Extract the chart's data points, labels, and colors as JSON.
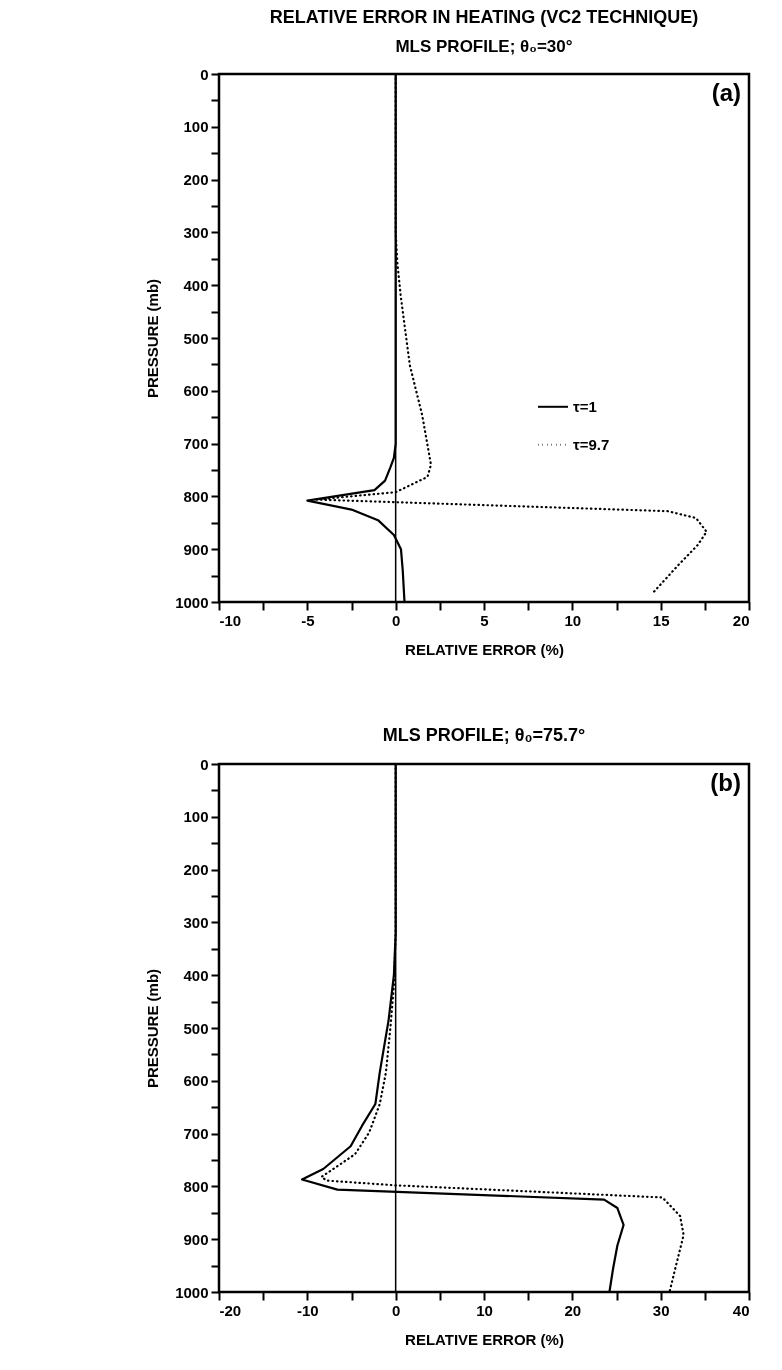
{
  "chart_data": [
    {
      "type": "line",
      "title": "RELATIVE ERROR IN HEATING (VC2 TECHNIQUE)",
      "subtitle": "MLS PROFILE; θ₀=30°",
      "xlabel": "RELATIVE ERROR  (%)",
      "ylabel": "PRESSURE  (mb)",
      "xlim": [
        -10,
        20
      ],
      "ylim": [
        1000,
        0
      ],
      "xticks": [
        -10,
        {
          "value": -7.5,
          "label": null
        },
        -5,
        {
          "value": -2.5,
          "label": null
        },
        0,
        {
          "value": 2.5,
          "label": null
        },
        5,
        {
          "value": 7.5,
          "label": null
        },
        10,
        {
          "value": 12.5,
          "label": null
        },
        15,
        {
          "value": 17.5,
          "label": null
        },
        20
      ],
      "yticks": [
        0,
        {
          "value": 50,
          "label": null
        },
        100,
        {
          "value": 150,
          "label": null
        },
        200,
        {
          "value": 250,
          "label": null
        },
        300,
        {
          "value": 350,
          "label": null
        },
        400,
        {
          "value": 450,
          "label": null
        },
        500,
        {
          "value": 550,
          "label": null
        },
        600,
        {
          "value": 650,
          "label": null
        },
        700,
        {
          "value": 750,
          "label": null
        },
        800,
        {
          "value": 850,
          "label": null
        },
        900,
        {
          "value": 950,
          "label": null
        },
        1000
      ],
      "grid": false,
      "legend": "right",
      "ref_lines": [
        {
          "axis": "x",
          "value": 0
        }
      ],
      "annotations": [
        "(a)"
      ],
      "series": [
        {
          "name": "τ=1",
          "color": "#000000",
          "line_style": "solid",
          "x": [
            0,
            0,
            -0.1,
            -0.3,
            -0.6,
            -1.2,
            -5,
            -2.5,
            -1.0,
            -0.1,
            0.3,
            0.4,
            0.5
          ],
          "values": [
            0,
            700,
            727,
            745,
            770,
            788,
            808,
            825,
            845,
            873,
            900,
            940,
            1000
          ]
        },
        {
          "name": "τ=9.7",
          "color": "#000000",
          "line_style": "dotted",
          "x": [
            0,
            0,
            0.1,
            0.3,
            0.8,
            1.5,
            2.0,
            1.8,
            0,
            -4.5,
            0,
            15.4,
            17,
            17.6,
            17.1,
            16,
            14.5
          ],
          "values": [
            0,
            300,
            360,
            424,
            551,
            646,
            740,
            763,
            792,
            806,
            811,
            828,
            841,
            867,
            892,
            930,
            985
          ]
        }
      ]
    },
    {
      "type": "line",
      "title": "MLS PROFILE; θ₀=75.7°",
      "xlabel": "RELATIVE ERROR  (%)",
      "ylabel": "PRESSURE  (mb)",
      "xlim": [
        -20,
        40
      ],
      "ylim": [
        1000,
        0
      ],
      "xticks": [
        -20,
        {
          "value": -15,
          "label": null
        },
        -10,
        {
          "value": -5,
          "label": null
        },
        0,
        {
          "value": 5,
          "label": null
        },
        10,
        {
          "value": 15,
          "label": null
        },
        20,
        {
          "value": 25,
          "label": null
        },
        30,
        {
          "value": 35,
          "label": null
        },
        40
      ],
      "yticks": [
        0,
        {
          "value": 50,
          "label": null
        },
        100,
        {
          "value": 150,
          "label": null
        },
        200,
        {
          "value": 250,
          "label": null
        },
        300,
        {
          "value": 350,
          "label": null
        },
        400,
        {
          "value": 450,
          "label": null
        },
        500,
        {
          "value": 550,
          "label": null
        },
        600,
        {
          "value": 650,
          "label": null
        },
        700,
        {
          "value": 750,
          "label": null
        },
        800,
        {
          "value": 850,
          "label": null
        },
        900,
        {
          "value": 950,
          "label": null
        },
        1000
      ],
      "grid": false,
      "ref_lines": [
        {
          "axis": "x",
          "value": 0
        }
      ],
      "annotations": [
        "(b)"
      ],
      "series": [
        {
          "color": "#000000",
          "line_style": "solid",
          "x": [
            0,
            0,
            -0.2,
            -0.8,
            -1.8,
            -2.3,
            -3.8,
            -5.1,
            -8.2,
            -10.6,
            -6.6,
            23.6,
            25.1,
            25.8,
            25.1,
            24.6,
            24.2
          ],
          "values": [
            0,
            320,
            400,
            485,
            584,
            644,
            685,
            724,
            767,
            787,
            806,
            825,
            841,
            873,
            912,
            957,
            1000
          ]
        },
        {
          "color": "#000000",
          "line_style": "dotted",
          "x": [
            0,
            0,
            -0.2,
            -0.6,
            -1.1,
            -1.8,
            -3.0,
            -4.6,
            -8.4,
            -7.8,
            0,
            30.2,
            32.2,
            32.6,
            31.6,
            31
          ],
          "values": [
            0,
            320,
            420,
            500,
            584,
            644,
            698,
            739,
            782,
            789,
            798,
            821,
            856,
            892,
            959,
            1000
          ]
        }
      ]
    }
  ]
}
